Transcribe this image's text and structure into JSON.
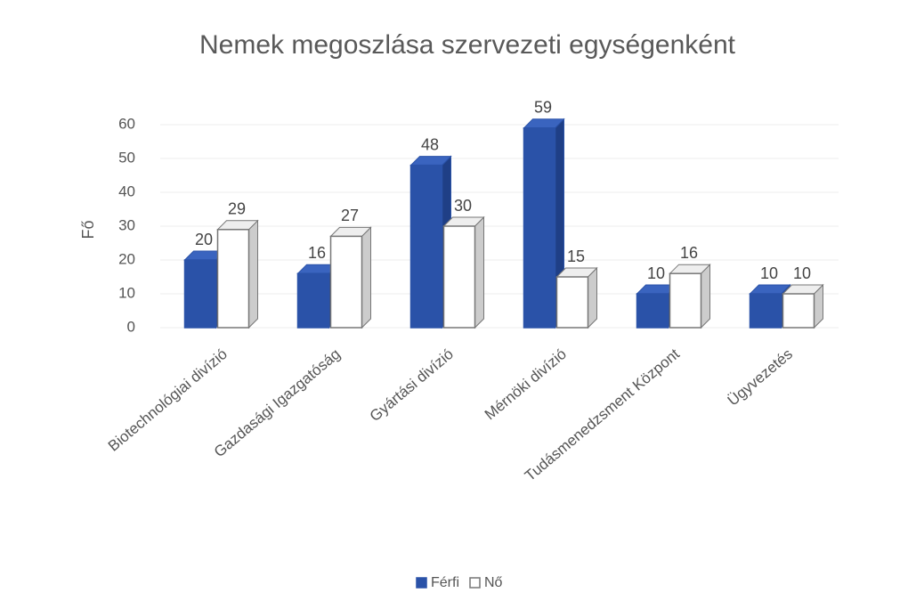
{
  "chart_data": {
    "type": "bar",
    "title": "Nemek megoszlása szervezeti egységenként",
    "y_label": "Fő",
    "categories": [
      "Biotechnológiai divízió",
      "Gazdasági Igazgatóság",
      "Gyártási divízió",
      "Mérnöki divízió",
      "Tudásmenedzsment Központ",
      "Ügyvezetés"
    ],
    "series": [
      {
        "name": "Férfi",
        "color": "#2a52a8",
        "values": [
          20,
          16,
          48,
          59,
          10,
          10
        ]
      },
      {
        "name": "Nő",
        "color": "#ffffff",
        "values": [
          29,
          27,
          30,
          15,
          16,
          10
        ]
      }
    ],
    "ylim": [
      0,
      60
    ],
    "yticks": [
      0,
      10,
      20,
      30,
      40,
      50,
      60
    ],
    "grid": true,
    "legend": "bottom"
  }
}
